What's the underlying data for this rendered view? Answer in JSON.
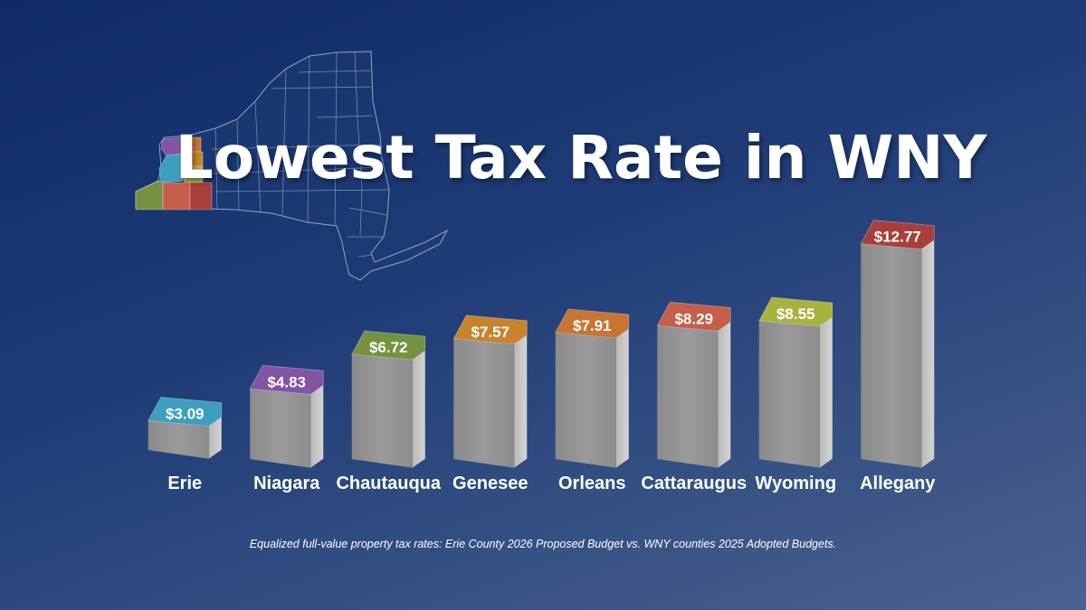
{
  "chart_data": {
    "type": "bar",
    "title": "Lowest Tax Rate in WNY",
    "categories": [
      "Erie",
      "Niagara",
      "Chautauqua",
      "Genesee",
      "Orleans",
      "Cattaraugus",
      "Wyoming",
      "Allegany"
    ],
    "values": [
      3.09,
      4.83,
      6.72,
      7.57,
      7.91,
      8.29,
      8.55,
      12.77
    ],
    "value_labels": [
      "$3.09",
      "$4.83",
      "$6.72",
      "$7.57",
      "$7.91",
      "$8.29",
      "$8.55",
      "$12.77"
    ],
    "colors": [
      "#3d9fbd",
      "#8154a6",
      "#74923f",
      "#c8842d",
      "#c77533",
      "#c65e4c",
      "#a8b23e",
      "#a93f3a"
    ],
    "xlabel": "",
    "ylabel": "",
    "ylim": [
      0,
      14
    ],
    "footnote": "Equalized full-value property tax rates: Erie County 2026 Proposed Budget vs. WNY counties 2025 Adopted Budgets."
  },
  "map": {
    "name": "New York State county map",
    "highlight_colors": [
      "#3d9fbd",
      "#8154a6",
      "#c77533",
      "#c8842d",
      "#74923f",
      "#c65e4c",
      "#a8b23e",
      "#a93f3a"
    ]
  }
}
